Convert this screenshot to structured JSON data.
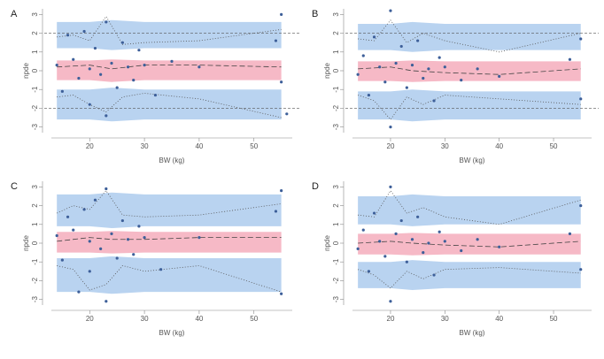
{
  "chart_data": [
    {
      "type": "scatter",
      "label": "A",
      "x_label": "BW (kg)",
      "y_label": "npde",
      "xlim": [
        13,
        57
      ],
      "ylim": [
        -3.3,
        3.3
      ],
      "xticks": [
        20,
        30,
        40,
        50
      ],
      "yticks": [
        -3,
        -2,
        -1,
        0,
        1,
        2,
        3
      ],
      "hlines": [
        -2,
        2
      ],
      "bands": [
        {
          "color": "#b9d3f0",
          "x": [
            14,
            20,
            24,
            30,
            40,
            55
          ],
          "upper": [
            2.6,
            2.6,
            2.7,
            2.6,
            2.6,
            2.6
          ],
          "lower": [
            1.2,
            1.2,
            1.1,
            1.2,
            1.2,
            1.2
          ]
        },
        {
          "color": "#f6b9c6",
          "x": [
            14,
            20,
            24,
            30,
            40,
            55
          ],
          "upper": [
            0.55,
            0.55,
            0.6,
            0.55,
            0.55,
            0.55
          ],
          "lower": [
            -0.5,
            -0.5,
            -0.6,
            -0.5,
            -0.5,
            -0.5
          ]
        },
        {
          "color": "#b9d3f0",
          "x": [
            14,
            20,
            24,
            30,
            40,
            55
          ],
          "upper": [
            -1.0,
            -1.0,
            -0.9,
            -1.0,
            -1.0,
            -1.0
          ],
          "lower": [
            -2.6,
            -2.6,
            -2.7,
            -2.6,
            -2.6,
            -2.6
          ]
        }
      ],
      "lines": [
        {
          "color": "#444",
          "dash": "6,3",
          "x": [
            14,
            20,
            24,
            30,
            40,
            55
          ],
          "values": [
            0.2,
            0.3,
            0.1,
            0.3,
            0.3,
            0.2
          ]
        },
        {
          "color": "#555",
          "dash": "1,2",
          "x": [
            14,
            17,
            20,
            23,
            26,
            30,
            40,
            55
          ],
          "values": [
            1.8,
            1.9,
            1.6,
            2.9,
            1.4,
            1.5,
            1.6,
            2.2
          ]
        },
        {
          "color": "#555",
          "dash": "1,2",
          "x": [
            14,
            17,
            20,
            23,
            26,
            30,
            40,
            55
          ],
          "values": [
            -1.4,
            -1.3,
            -1.8,
            -2.2,
            -1.4,
            -1.2,
            -1.5,
            -2.5
          ]
        }
      ],
      "series": [
        {
          "color": "#3d5f99",
          "x": [
            14,
            15,
            16,
            17,
            18,
            19,
            20,
            20,
            21,
            22,
            23,
            23,
            24,
            25,
            26,
            27,
            28,
            29,
            30,
            32,
            35,
            40,
            54,
            55,
            55,
            56
          ],
          "values": [
            0.3,
            -1.1,
            1.9,
            0.6,
            -0.4,
            2.1,
            0.1,
            -1.8,
            1.2,
            -0.2,
            2.6,
            -2.4,
            0.4,
            -0.9,
            1.5,
            0.2,
            -0.5,
            1.1,
            0.3,
            -1.3,
            0.5,
            0.2,
            1.6,
            -0.6,
            3.0,
            -2.3
          ]
        }
      ]
    },
    {
      "type": "scatter",
      "label": "B",
      "x_label": "BW (kg)",
      "y_label": "npde",
      "xlim": [
        13,
        57
      ],
      "ylim": [
        -3.3,
        3.3
      ],
      "xticks": [
        20,
        30,
        40,
        50
      ],
      "yticks": [
        -3,
        -2,
        -1,
        0,
        1,
        2,
        3
      ],
      "hlines": [
        -2,
        2
      ],
      "bands": [
        {
          "color": "#b9d3f0",
          "x": [
            14,
            20,
            24,
            30,
            40,
            55
          ],
          "upper": [
            2.5,
            2.5,
            2.6,
            2.5,
            2.5,
            2.5
          ],
          "lower": [
            1.1,
            1.1,
            1.0,
            1.1,
            1.1,
            1.1
          ]
        },
        {
          "color": "#f6b9c6",
          "x": [
            14,
            20,
            24,
            30,
            40,
            55
          ],
          "upper": [
            0.5,
            0.5,
            0.55,
            0.5,
            0.5,
            0.5
          ],
          "lower": [
            -0.55,
            -0.55,
            -0.6,
            -0.55,
            -0.55,
            -0.55
          ]
        },
        {
          "color": "#b9d3f0",
          "x": [
            14,
            20,
            24,
            30,
            40,
            55
          ],
          "upper": [
            -1.1,
            -1.1,
            -1.0,
            -1.1,
            -1.1,
            -1.1
          ],
          "lower": [
            -2.6,
            -2.6,
            -2.7,
            -2.6,
            -2.6,
            -2.6
          ]
        }
      ],
      "lines": [
        {
          "color": "#444",
          "dash": "6,3",
          "x": [
            14,
            20,
            24,
            30,
            40,
            55
          ],
          "values": [
            0.1,
            0.2,
            0.0,
            -0.1,
            -0.2,
            0.1
          ]
        },
        {
          "color": "#555",
          "dash": "1,2",
          "x": [
            14,
            17,
            20,
            23,
            26,
            30,
            40,
            55
          ],
          "values": [
            1.7,
            1.6,
            2.7,
            1.5,
            2.0,
            1.6,
            1.0,
            2.0
          ]
        },
        {
          "color": "#555",
          "dash": "1,2",
          "x": [
            14,
            17,
            20,
            23,
            26,
            30,
            40,
            55
          ],
          "values": [
            -1.3,
            -1.6,
            -2.6,
            -1.4,
            -1.8,
            -1.3,
            -1.5,
            -1.8
          ]
        }
      ],
      "series": [
        {
          "color": "#3d5f99",
          "x": [
            14,
            15,
            16,
            17,
            18,
            19,
            20,
            20,
            21,
            22,
            23,
            24,
            25,
            26,
            27,
            28,
            29,
            30,
            33,
            36,
            40,
            53,
            55,
            55
          ],
          "values": [
            -0.2,
            0.8,
            -1.3,
            1.8,
            0.2,
            -0.6,
            3.2,
            -3.0,
            0.4,
            1.3,
            -0.9,
            0.3,
            1.6,
            -0.4,
            0.1,
            -1.6,
            0.7,
            0.2,
            -0.5,
            0.1,
            -0.3,
            0.6,
            1.7,
            -1.5
          ]
        }
      ]
    },
    {
      "type": "scatter",
      "label": "C",
      "x_label": "BW (kg)",
      "y_label": "npde",
      "xlim": [
        13,
        57
      ],
      "ylim": [
        -3.3,
        3.3
      ],
      "xticks": [
        20,
        30,
        40,
        50
      ],
      "yticks": [
        -3,
        -2,
        -1,
        0,
        1,
        2,
        3
      ],
      "hlines": [],
      "bands": [
        {
          "color": "#b9d3f0",
          "x": [
            14,
            20,
            24,
            30,
            40,
            55
          ],
          "upper": [
            2.6,
            2.6,
            2.7,
            2.6,
            2.6,
            2.6
          ],
          "lower": [
            0.9,
            0.9,
            0.8,
            0.9,
            0.9,
            0.9
          ]
        },
        {
          "color": "#f6b9c6",
          "x": [
            14,
            20,
            24,
            30,
            40,
            55
          ],
          "upper": [
            0.6,
            0.6,
            0.65,
            0.6,
            0.6,
            0.6
          ],
          "lower": [
            -0.5,
            -0.5,
            -0.55,
            -0.5,
            -0.5,
            -0.5
          ]
        },
        {
          "color": "#b9d3f0",
          "x": [
            14,
            20,
            24,
            30,
            40,
            55
          ],
          "upper": [
            -0.8,
            -0.8,
            -0.7,
            -0.8,
            -0.8,
            -0.8
          ],
          "lower": [
            -2.6,
            -2.6,
            -2.7,
            -2.6,
            -2.6,
            -2.6
          ]
        }
      ],
      "lines": [
        {
          "color": "#444",
          "dash": "6,3",
          "x": [
            14,
            20,
            24,
            30,
            40,
            55
          ],
          "values": [
            0.1,
            0.3,
            0.2,
            0.2,
            0.3,
            0.3
          ]
        },
        {
          "color": "#555",
          "dash": "1,2",
          "x": [
            14,
            17,
            20,
            23,
            26,
            30,
            40,
            55
          ],
          "values": [
            1.6,
            2.0,
            1.8,
            2.8,
            1.5,
            1.4,
            1.5,
            2.1
          ]
        },
        {
          "color": "#555",
          "dash": "1,2",
          "x": [
            14,
            17,
            20,
            23,
            26,
            30,
            40,
            55
          ],
          "values": [
            -1.2,
            -1.4,
            -2.5,
            -2.2,
            -1.2,
            -1.5,
            -1.2,
            -2.6
          ]
        }
      ],
      "series": [
        {
          "color": "#3d5f99",
          "x": [
            14,
            15,
            16,
            17,
            18,
            19,
            20,
            20,
            21,
            22,
            23,
            23,
            24,
            25,
            26,
            27,
            28,
            29,
            30,
            33,
            40,
            54,
            55,
            55
          ],
          "values": [
            0.4,
            -0.9,
            1.4,
            0.7,
            -2.6,
            1.8,
            0.1,
            -1.5,
            2.3,
            -0.3,
            2.9,
            -3.1,
            0.5,
            -0.8,
            1.2,
            0.2,
            -0.6,
            0.9,
            0.3,
            -1.4,
            0.3,
            1.7,
            2.8,
            -2.7
          ]
        }
      ]
    },
    {
      "type": "scatter",
      "label": "D",
      "x_label": "BW (kg)",
      "y_label": "npde",
      "xlim": [
        13,
        57
      ],
      "ylim": [
        -3.3,
        3.3
      ],
      "xticks": [
        20,
        30,
        40,
        50
      ],
      "yticks": [
        -3,
        -2,
        -1,
        0,
        1,
        2,
        3
      ],
      "hlines": [],
      "bands": [
        {
          "color": "#b9d3f0",
          "x": [
            14,
            20,
            24,
            30,
            40,
            55
          ],
          "upper": [
            2.5,
            2.5,
            2.6,
            2.5,
            2.5,
            2.5
          ],
          "lower": [
            1.0,
            1.0,
            0.9,
            1.0,
            1.0,
            1.0
          ]
        },
        {
          "color": "#f6b9c6",
          "x": [
            14,
            20,
            24,
            30,
            40,
            55
          ],
          "upper": [
            0.5,
            0.5,
            0.55,
            0.5,
            0.5,
            0.5
          ],
          "lower": [
            -0.6,
            -0.6,
            -0.65,
            -0.6,
            -0.6,
            -0.6
          ]
        },
        {
          "color": "#b9d3f0",
          "x": [
            14,
            20,
            24,
            30,
            40,
            55
          ],
          "upper": [
            -1.0,
            -1.0,
            -0.9,
            -1.0,
            -1.0,
            -1.0
          ],
          "lower": [
            -2.4,
            -2.4,
            -2.5,
            -2.4,
            -2.4,
            -2.4
          ]
        }
      ],
      "lines": [
        {
          "color": "#444",
          "dash": "6,3",
          "x": [
            14,
            20,
            24,
            30,
            40,
            55
          ],
          "values": [
            0.0,
            0.1,
            0.0,
            -0.1,
            -0.2,
            0.1
          ]
        },
        {
          "color": "#555",
          "dash": "1,2",
          "x": [
            14,
            17,
            20,
            23,
            26,
            30,
            40,
            55
          ],
          "values": [
            1.5,
            1.4,
            2.8,
            1.6,
            1.9,
            1.4,
            1.0,
            2.3
          ]
        },
        {
          "color": "#555",
          "dash": "1,2",
          "x": [
            14,
            17,
            20,
            23,
            26,
            30,
            40,
            55
          ],
          "values": [
            -1.4,
            -1.7,
            -2.4,
            -1.5,
            -1.9,
            -1.4,
            -1.3,
            -1.6
          ]
        }
      ],
      "series": [
        {
          "color": "#3d5f99",
          "x": [
            14,
            15,
            16,
            17,
            18,
            19,
            20,
            20,
            21,
            22,
            23,
            24,
            25,
            26,
            27,
            28,
            29,
            30,
            33,
            36,
            40,
            53,
            55,
            55
          ],
          "values": [
            -0.3,
            0.7,
            -1.5,
            1.6,
            0.1,
            -0.7,
            3.0,
            -3.1,
            0.5,
            1.2,
            -1.0,
            0.2,
            1.4,
            -0.5,
            0.0,
            -1.7,
            0.6,
            0.1,
            -0.4,
            0.2,
            -0.2,
            0.5,
            2.0,
            -1.4
          ]
        }
      ]
    }
  ]
}
